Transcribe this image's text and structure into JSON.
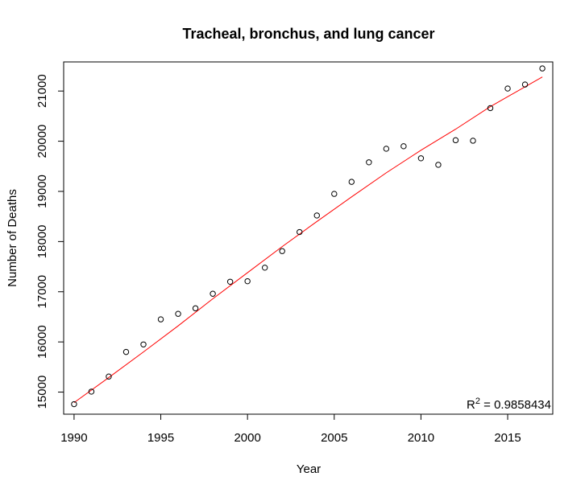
{
  "chart_data": {
    "type": "scatter",
    "title": "Tracheal, bronchus, and lung cancer",
    "xlabel": "Year",
    "ylabel": "Number of Deaths",
    "xlim": [
      1989.4,
      2017.6
    ],
    "ylim": [
      14560,
      21580
    ],
    "xticks": [
      1990,
      1995,
      2000,
      2005,
      2010,
      2015
    ],
    "yticks": [
      15000,
      16000,
      17000,
      18000,
      19000,
      20000,
      21000
    ],
    "annotation": {
      "prefix": "R",
      "sup": "2",
      "value": " = 0.9858434"
    },
    "grid": false,
    "series": [
      {
        "x": [
          1990,
          1991,
          1992,
          1993,
          1994,
          1995,
          1996,
          1997,
          1998,
          1999,
          2000,
          2001,
          2002,
          2003,
          2004,
          2005,
          2006,
          2007,
          2008,
          2009,
          2010,
          2011,
          2012,
          2013,
          2014,
          2015,
          2016,
          2017
        ],
        "y": [
          14760,
          15010,
          15310,
          15800,
          15950,
          16450,
          16560,
          16670,
          16960,
          17200,
          17210,
          17480,
          17810,
          18190,
          18520,
          18950,
          19190,
          19580,
          19850,
          19900,
          19660,
          19530,
          20020,
          20010,
          20660,
          21050,
          21130,
          21450
        ],
        "marker": "open-circle",
        "color": "#000000"
      },
      {
        "type": "line",
        "x": [
          1990,
          1992,
          1994,
          1996,
          1998,
          2000,
          2002,
          2004,
          2006,
          2008,
          2010,
          2012,
          2014,
          2017
        ],
        "y": [
          14790,
          15290,
          15800,
          16320,
          16860,
          17380,
          17900,
          18400,
          18890,
          19370,
          19820,
          20240,
          20690,
          21280
        ],
        "color": "#ff0000"
      }
    ]
  }
}
